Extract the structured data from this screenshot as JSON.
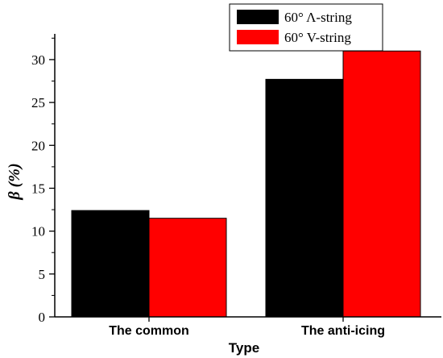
{
  "chart_data": {
    "type": "bar",
    "categories": [
      "The common",
      "The anti-icing"
    ],
    "series": [
      {
        "name": "60° Λ-string",
        "color": "#000000",
        "values": [
          12.4,
          27.7
        ]
      },
      {
        "name": "60° V-string",
        "color": "#ff0000",
        "values": [
          11.5,
          31.0
        ]
      }
    ],
    "xlabel": "Type",
    "ylabel": "β (%)",
    "ylim": [
      0,
      33
    ],
    "yticks": [
      0,
      5,
      10,
      15,
      20,
      25,
      30
    ],
    "legend_position": "top-right",
    "grid": false
  }
}
